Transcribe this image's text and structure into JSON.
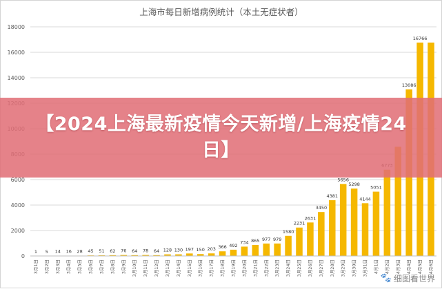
{
  "banner": {
    "title": "【2024上海最新疫情今天新增/上海疫情24日】"
  },
  "watermark": {
    "text": "细图看世界",
    "icon": "paw-icon"
  },
  "colors": {
    "bar": "#f5b800",
    "grid": "#d9d9d9",
    "banner": "#e16e76"
  },
  "chart_data": {
    "type": "bar",
    "title": "上海市每日新增病例统计（本土无症状者）",
    "xlabel": "",
    "ylabel": "",
    "ylim": [
      0,
      18000
    ],
    "yticks": [
      0,
      2000,
      4000,
      6000,
      8000,
      10000,
      12000,
      14000,
      16000,
      18000
    ],
    "grid": true,
    "legend": "none",
    "categories": [
      "3月1日",
      "3月2日",
      "3月3日",
      "3月4日",
      "3月5日",
      "3月6日",
      "3月7日",
      "3月8日",
      "3月9日",
      "3月10日",
      "3月11日",
      "3月12日",
      "3月13日",
      "3月14日",
      "3月15日",
      "3月16日",
      "3月17日",
      "3月18日",
      "3月19日",
      "3月20日",
      "3月21日",
      "3月22日",
      "3月23日",
      "3月24日",
      "3月25日",
      "3月26日",
      "3月27日",
      "3月28日",
      "3月29日",
      "3月30日",
      "3月31日",
      "4月1日",
      "4月2日",
      "4月3日",
      "4月4日",
      "4月5日",
      "4月6日"
    ],
    "values": [
      1,
      5,
      14,
      16,
      28,
      45,
      51,
      62,
      76,
      64,
      78,
      64,
      128,
      130,
      197,
      150,
      203,
      366,
      492,
      734,
      865,
      977,
      979,
      1580,
      2231,
      2631,
      3450,
      4381,
      5656,
      5298,
      4144,
      5051,
      6773,
      8581,
      13086,
      16766,
      16766
    ],
    "labels": [
      "1",
      "5",
      "14",
      "16",
      "28",
      "45",
      "51",
      "62",
      "76",
      "64",
      "78",
      "64",
      "128",
      "130",
      "197",
      "150",
      "203",
      "366",
      "492",
      "734",
      "865",
      "977",
      "979",
      "1580",
      "2231",
      "2631",
      "3450",
      "4381",
      "5656",
      "5298",
      "4144",
      "5051",
      "6773",
      "",
      "13086",
      "16766",
      ""
    ]
  }
}
